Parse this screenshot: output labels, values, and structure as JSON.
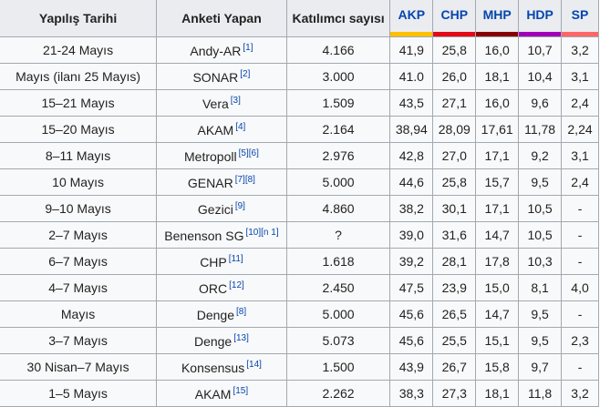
{
  "headers": {
    "date": "Yapılış Tarihi",
    "pollster": "Anketi Yapan",
    "sample": "Katılımcı sayısı"
  },
  "parties": [
    {
      "name": "AKP",
      "color": "#ffc000"
    },
    {
      "name": "CHP",
      "color": "#e30a17"
    },
    {
      "name": "MHP",
      "color": "#870000"
    },
    {
      "name": "HDP",
      "color": "#a000b8"
    },
    {
      "name": "SP",
      "color": "#ff6666"
    }
  ],
  "rows": [
    {
      "date": "21-24 Mayıs",
      "pollster": "Andy-AR",
      "ref": "[1]",
      "sample": "4.166",
      "values": [
        "41,9",
        "25,8",
        "16,0",
        "10,7",
        "3,2"
      ]
    },
    {
      "date": "Mayıs (ilanı 25 Mayıs)",
      "pollster": "SONAR",
      "ref": "[2]",
      "sample": "3.000",
      "values": [
        "41.0",
        "26,0",
        "18,1",
        "10,4",
        "3,1"
      ]
    },
    {
      "date": "15–21 Mayıs",
      "pollster": "Vera",
      "ref": "[3]",
      "sample": "1.509",
      "values": [
        "43,5",
        "27,1",
        "16,0",
        "9,6",
        "2,4"
      ]
    },
    {
      "date": "15–20 Mayıs",
      "pollster": "AKAM",
      "ref": "[4]",
      "sample": "2.164",
      "values": [
        "38,94",
        "28,09",
        "17,61",
        "11,78",
        "2,24"
      ]
    },
    {
      "date": "8–11 Mayıs",
      "pollster": "Metropoll",
      "ref": "[5][6]",
      "sample": "2.976",
      "values": [
        "42,8",
        "27,0",
        "17,1",
        "9,2",
        "3,1"
      ]
    },
    {
      "date": "10 Mayıs",
      "pollster": "GENAR",
      "ref": "[7][8]",
      "sample": "5.000",
      "values": [
        "44,6",
        "25,8",
        "15,7",
        "9,5",
        "2,4"
      ]
    },
    {
      "date": "9–10 Mayıs",
      "pollster": "Gezici",
      "ref": "[9]",
      "sample": "4.860",
      "values": [
        "38,2",
        "30,1",
        "17,1",
        "10,5",
        "-"
      ]
    },
    {
      "date": "2–7 Mayıs",
      "pollster": "Benenson SG",
      "ref": "[10][n 1]",
      "sample": "?",
      "values": [
        "39,0",
        "31,6",
        "14,7",
        "10,5",
        "-"
      ]
    },
    {
      "date": "6–7 Mayıs",
      "pollster": "CHP",
      "ref": "[11]",
      "sample": "1.618",
      "values": [
        "39,2",
        "28,1",
        "17,8",
        "10,3",
        "-"
      ]
    },
    {
      "date": "4–7 Mayıs",
      "pollster": "ORC",
      "ref": "[12]",
      "sample": "2.450",
      "values": [
        "47,5",
        "23,9",
        "15,0",
        "8,1",
        "4,0"
      ]
    },
    {
      "date": "Mayıs",
      "pollster": "Denge",
      "ref": "[8]",
      "sample": "5.000",
      "values": [
        "45,6",
        "26,5",
        "14,7",
        "9,5",
        "-"
      ]
    },
    {
      "date": "3–7 Mayıs",
      "pollster": "Denge",
      "ref": "[13]",
      "sample": "5.073",
      "values": [
        "45,6",
        "25,5",
        "15,1",
        "9,5",
        "2,3"
      ]
    },
    {
      "date": "30 Nisan–7 Mayıs",
      "pollster": "Konsensus",
      "ref": "[14]",
      "sample": "1.500",
      "values": [
        "43,9",
        "26,7",
        "15,8",
        "9,7",
        "-"
      ]
    },
    {
      "date": "1–5 Mayıs",
      "pollster": "AKAM",
      "ref": "[15]",
      "sample": "2.262",
      "values": [
        "38,3",
        "27,3",
        "18,1",
        "11,8",
        "3,2"
      ]
    }
  ]
}
